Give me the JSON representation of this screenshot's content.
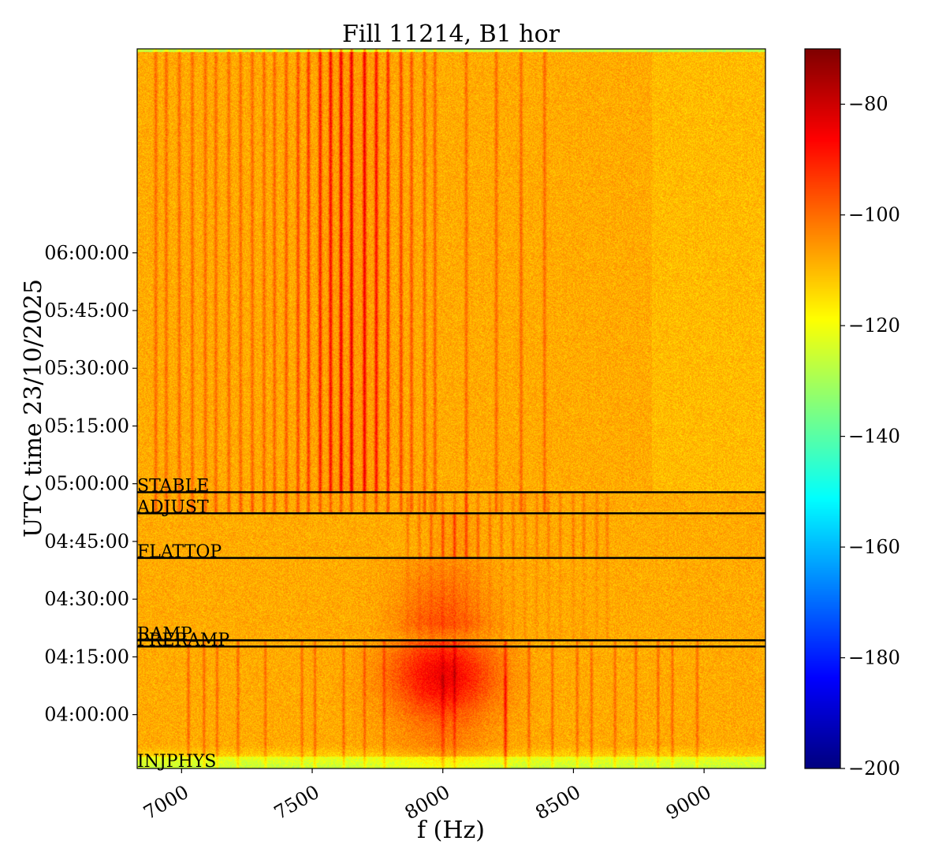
{
  "chart_data": {
    "type": "heatmap",
    "title": "Fill 11214, B1 hor",
    "xlabel": "f (Hz)",
    "ylabel": "UTC time 23/10/2025",
    "xlim": [
      6830,
      9235
    ],
    "ylim_minutes": [
      226,
      413
    ],
    "x_ticks": [
      {
        "value": 7000,
        "label": "7000"
      },
      {
        "value": 7500,
        "label": "7500"
      },
      {
        "value": 8000,
        "label": "8000"
      },
      {
        "value": 8500,
        "label": "8500"
      },
      {
        "value": 9000,
        "label": "9000"
      }
    ],
    "y_ticks": [
      {
        "minutes": 240,
        "label": "04:00:00"
      },
      {
        "minutes": 255,
        "label": "04:15:00"
      },
      {
        "minutes": 270,
        "label": "04:30:00"
      },
      {
        "minutes": 285,
        "label": "04:45:00"
      },
      {
        "minutes": 300,
        "label": "05:00:00"
      },
      {
        "minutes": 315,
        "label": "05:15:00"
      },
      {
        "minutes": 330,
        "label": "05:30:00"
      },
      {
        "minutes": 345,
        "label": "05:45:00"
      },
      {
        "minutes": 360,
        "label": "06:00:00"
      }
    ],
    "beam_modes": [
      {
        "label": "INJPHYS",
        "time": "03:46:10",
        "minutes": 226.2,
        "line": false
      },
      {
        "label": "PRERAMP",
        "time": "04:17:40",
        "minutes": 257.7,
        "line": true
      },
      {
        "label": "RAMP",
        "time": "04:19:20",
        "minutes": 259.3,
        "line": true
      },
      {
        "label": "FLATTOP",
        "time": "04:40:40",
        "minutes": 280.7,
        "line": true
      },
      {
        "label": "ADJUST",
        "time": "04:52:20",
        "minutes": 292.3,
        "line": true
      },
      {
        "label": "STABLE",
        "time": "04:57:50",
        "minutes": 297.8,
        "line": true
      }
    ],
    "colorbar": {
      "range": [
        -200,
        -70
      ],
      "ticks": [
        {
          "value": -80,
          "label": "−80"
        },
        {
          "value": -100,
          "label": "−100"
        },
        {
          "value": -120,
          "label": "−120"
        },
        {
          "value": -140,
          "label": "−140"
        },
        {
          "value": -160,
          "label": "−160"
        },
        {
          "value": -180,
          "label": "−180"
        },
        {
          "value": -200,
          "label": "−200"
        }
      ],
      "colormap": "jet"
    },
    "background_level_db": -108,
    "features": {
      "after_stable_lines_hz": [
        7610,
        7650,
        7700,
        7745,
        7790,
        7570,
        7530,
        7485,
        7445,
        7400,
        7355,
        7315,
        7270,
        7225,
        7180,
        7130,
        7090,
        7040,
        6990,
        6940,
        6900,
        7840,
        7880,
        7930,
        7970,
        8090,
        8205,
        8300,
        8390
      ],
      "flattop_lines_hz": [
        8000,
        8045,
        8090,
        8135,
        7955,
        7910,
        7865,
        8180,
        8225,
        8270,
        8315,
        8360,
        8405,
        8450,
        8500,
        8540,
        8590,
        8630
      ],
      "ramp_hump_center_hz": 8000,
      "ramp_hump_level_db": -86,
      "low_freq_lines_hz": [
        7025,
        7085,
        7135,
        7215,
        7320,
        7460,
        7510,
        7620,
        7700,
        7775,
        8045,
        8240,
        8330,
        8420,
        8515,
        8570,
        8660,
        8740,
        8825,
        8880,
        8975
      ]
    }
  }
}
